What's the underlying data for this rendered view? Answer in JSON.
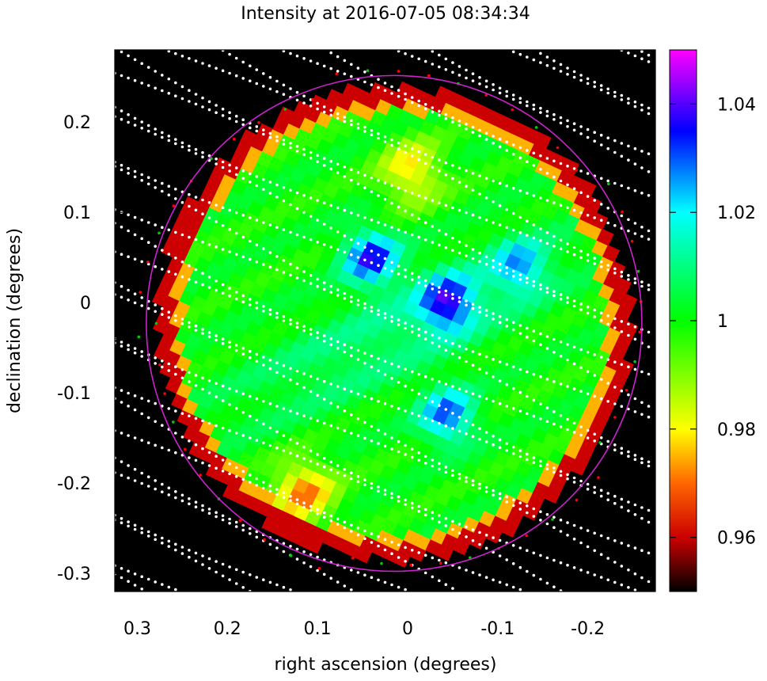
{
  "chart_data": {
    "type": "heatmap",
    "title": "Intensity at 2016-07-05 08:34:34",
    "xlabel": "right ascension (degrees)",
    "ylabel": "declination (degrees)",
    "xlim": [
      0.3,
      -0.2
    ],
    "xlim_extent": [
      0.325,
      -0.275
    ],
    "ylim": [
      -0.3,
      0.2
    ],
    "ylim_extent": [
      -0.32,
      0.28
    ],
    "x_ticks": [
      0.3,
      0.2,
      0.1,
      0,
      -0.1,
      -0.2
    ],
    "x_tick_labels": [
      "0.3",
      "0.2",
      "0.1",
      "0",
      "-0.1",
      "-0.2"
    ],
    "y_ticks": [
      0.2,
      0.1,
      0,
      -0.1,
      -0.2,
      -0.3
    ],
    "y_tick_labels": [
      "0.2",
      "0.1",
      "0",
      "-0.1",
      "-0.2",
      "-0.3"
    ],
    "colorbar": {
      "range": [
        0.95,
        1.05
      ],
      "ticks": [
        0.96,
        0.98,
        1,
        1.02,
        1.04
      ],
      "tick_labels": [
        "0.96",
        "0.98",
        "1",
        "1.02",
        "1.04"
      ],
      "colormap": "black-red-yellow-green-cyan-blue-magenta"
    },
    "solar_disk": {
      "center": [
        0.015,
        -0.023
      ],
      "radius": 0.275,
      "color": "#cc22cc"
    },
    "map_rotation_deg": 25,
    "background": "#000000",
    "scan_dot_color": "#ffffff",
    "outlier_colors": [
      "#ff0000",
      "#00cc00"
    ],
    "features": {
      "dark_spots": [
        {
          "x": 0.04,
          "y": 0.05,
          "value": 1.035
        },
        {
          "x": -0.045,
          "y": 0.0,
          "value": 1.033
        },
        {
          "x": -0.045,
          "y": -0.125,
          "value": 1.03
        },
        {
          "x": -0.125,
          "y": 0.04,
          "value": 1.022
        }
      ],
      "bright_spots": [
        {
          "x": -0.005,
          "y": 0.145,
          "value": 0.978
        },
        {
          "x": 0.115,
          "y": -0.21,
          "value": 0.972
        }
      ],
      "edge_value": 0.96,
      "mean_value": 1.0
    }
  }
}
